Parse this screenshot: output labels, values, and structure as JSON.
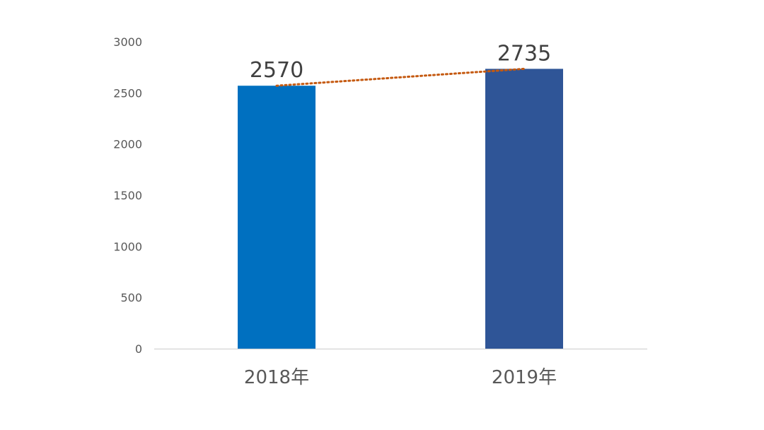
{
  "chart_data": {
    "type": "bar",
    "categories": [
      "2018年",
      "2019年"
    ],
    "values": [
      2570,
      2735
    ],
    "data_labels": [
      "2570",
      "2735"
    ],
    "ylim": [
      0,
      3000
    ],
    "y_ticks": [
      "0",
      "500",
      "1000",
      "1500",
      "2000",
      "2500",
      "3000"
    ],
    "bar_colors": [
      "#0070C0",
      "#2F5597"
    ],
    "trendline": {
      "style": "dotted",
      "color": "#C55A11"
    },
    "grid": false,
    "legend": "none"
  }
}
